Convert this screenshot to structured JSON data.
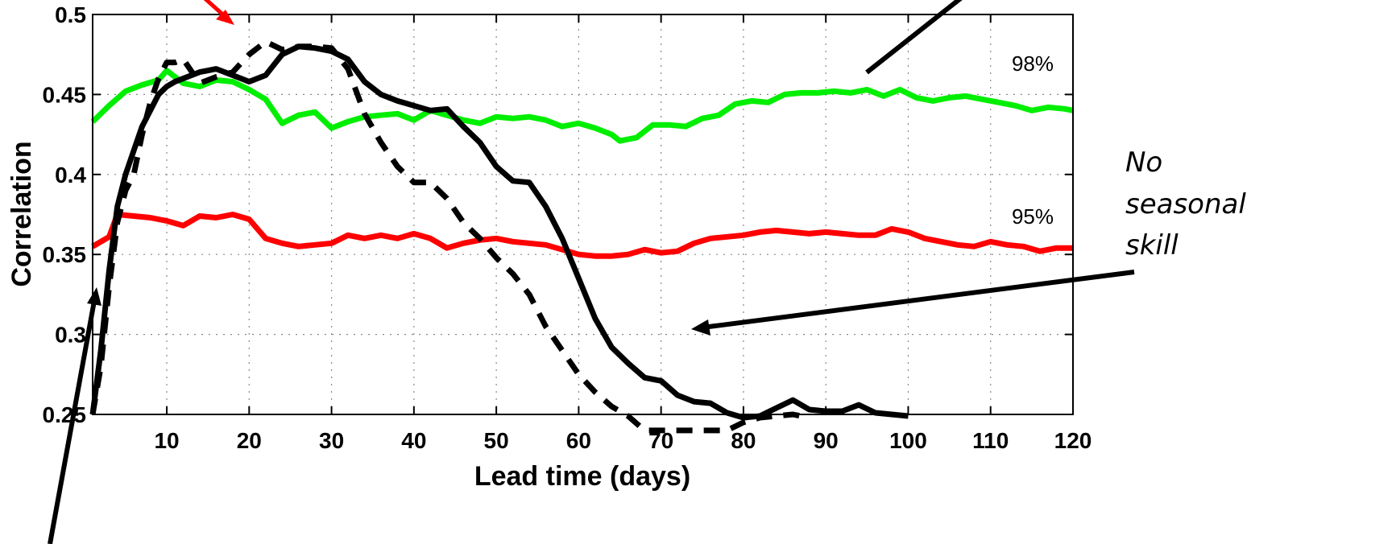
{
  "chart_data": {
    "type": "line",
    "title": "",
    "xlabel": "Lead time (days)",
    "ylabel": "Correlation",
    "xlim": [
      1,
      120
    ],
    "ylim": [
      0.25,
      0.5
    ],
    "xticks": [
      10,
      20,
      30,
      40,
      50,
      60,
      70,
      80,
      90,
      100,
      110,
      120
    ],
    "yticks": [
      0.25,
      0.3,
      0.35,
      0.4,
      0.45,
      0.5
    ],
    "ytick_labels": [
      "0.25",
      "0.3",
      "0.35",
      "0.4",
      "0.45",
      "0.5"
    ],
    "grid": true,
    "series": [
      {
        "name": "",
        "color": "#00ee00",
        "style": "solid",
        "x": [
          1,
          3,
          5,
          7,
          9,
          10,
          12,
          14,
          16,
          18,
          20,
          22,
          24,
          26,
          28,
          30,
          32,
          34,
          36,
          38,
          40,
          42,
          44,
          46,
          48,
          50,
          52,
          54,
          56,
          58,
          60,
          62,
          64,
          65,
          67,
          69,
          71,
          73,
          75,
          77,
          79,
          81,
          83,
          85,
          87,
          89,
          91,
          93,
          95,
          97,
          99,
          101,
          103,
          105,
          107,
          109,
          111,
          113,
          115,
          117,
          119,
          120
        ],
        "y": [
          0.433,
          0.443,
          0.452,
          0.456,
          0.459,
          0.465,
          0.457,
          0.455,
          0.459,
          0.458,
          0.453,
          0.447,
          0.432,
          0.437,
          0.439,
          0.429,
          0.433,
          0.436,
          0.437,
          0.438,
          0.434,
          0.44,
          0.437,
          0.434,
          0.432,
          0.436,
          0.435,
          0.436,
          0.434,
          0.43,
          0.432,
          0.429,
          0.425,
          0.421,
          0.423,
          0.431,
          0.431,
          0.43,
          0.435,
          0.437,
          0.444,
          0.446,
          0.445,
          0.45,
          0.451,
          0.451,
          0.452,
          0.451,
          0.453,
          0.449,
          0.453,
          0.448,
          0.446,
          0.448,
          0.449,
          0.447,
          0.445,
          0.443,
          0.44,
          0.442,
          0.441,
          0.44
        ]
      },
      {
        "name": "",
        "color": "#ff0000",
        "style": "solid",
        "x": [
          1,
          3,
          4,
          6,
          8,
          10,
          12,
          14,
          16,
          18,
          20,
          22,
          24,
          26,
          28,
          30,
          32,
          34,
          36,
          38,
          40,
          42,
          44,
          46,
          48,
          50,
          52,
          54,
          56,
          58,
          60,
          62,
          64,
          66,
          68,
          70,
          72,
          74,
          76,
          78,
          80,
          82,
          84,
          86,
          88,
          90,
          92,
          94,
          96,
          98,
          100,
          102,
          104,
          106,
          108,
          110,
          112,
          114,
          116,
          118,
          120
        ],
        "y": [
          0.355,
          0.361,
          0.375,
          0.374,
          0.373,
          0.371,
          0.368,
          0.374,
          0.373,
          0.375,
          0.372,
          0.36,
          0.357,
          0.355,
          0.356,
          0.357,
          0.362,
          0.36,
          0.362,
          0.36,
          0.363,
          0.36,
          0.354,
          0.357,
          0.359,
          0.36,
          0.358,
          0.357,
          0.356,
          0.353,
          0.35,
          0.349,
          0.349,
          0.35,
          0.353,
          0.351,
          0.352,
          0.357,
          0.36,
          0.361,
          0.362,
          0.364,
          0.365,
          0.364,
          0.363,
          0.364,
          0.363,
          0.362,
          0.362,
          0.366,
          0.364,
          0.36,
          0.358,
          0.356,
          0.355,
          0.358,
          0.356,
          0.355,
          0.352,
          0.354,
          0.354
        ]
      },
      {
        "name": "",
        "color": "#000000",
        "style": "solid",
        "x": [
          1,
          2,
          3,
          4,
          5,
          6,
          7,
          8,
          9,
          10,
          11,
          12,
          14,
          16,
          18,
          20,
          22,
          24,
          26,
          28,
          30,
          32,
          34,
          36,
          38,
          40,
          42,
          44,
          46,
          48,
          50,
          52,
          54,
          56,
          58,
          60,
          62,
          64,
          66,
          68,
          70,
          72,
          74,
          76,
          78,
          80,
          82,
          84,
          86,
          88,
          90,
          92,
          94,
          96,
          98,
          100
        ],
        "y": [
          0.25,
          0.29,
          0.34,
          0.38,
          0.4,
          0.415,
          0.43,
          0.44,
          0.45,
          0.455,
          0.458,
          0.46,
          0.464,
          0.466,
          0.462,
          0.458,
          0.462,
          0.475,
          0.48,
          0.479,
          0.477,
          0.472,
          0.458,
          0.45,
          0.446,
          0.443,
          0.44,
          0.441,
          0.43,
          0.42,
          0.405,
          0.396,
          0.395,
          0.38,
          0.36,
          0.335,
          0.31,
          0.292,
          0.282,
          0.273,
          0.271,
          0.262,
          0.258,
          0.257,
          0.251,
          0.248,
          0.249,
          0.254,
          0.259,
          0.253,
          0.252,
          0.252,
          0.256,
          0.251,
          0.25,
          0.249
        ]
      },
      {
        "name": "",
        "color": "#000000",
        "style": "dashed",
        "x": [
          1,
          2,
          3,
          4,
          5,
          6,
          7,
          8,
          9,
          10,
          11,
          12,
          14,
          16,
          18,
          20,
          22,
          24,
          26,
          28,
          30,
          32,
          34,
          36,
          38,
          40,
          42,
          44,
          46,
          48,
          50,
          52,
          54,
          56,
          58,
          60,
          62,
          64,
          66,
          68,
          70,
          72,
          74,
          76,
          78,
          80,
          82,
          84,
          86,
          88
        ],
        "y": [
          0.25,
          0.28,
          0.33,
          0.37,
          0.39,
          0.4,
          0.425,
          0.445,
          0.46,
          0.47,
          0.47,
          0.472,
          0.457,
          0.461,
          0.464,
          0.475,
          0.483,
          0.478,
          0.48,
          0.48,
          0.479,
          0.466,
          0.438,
          0.42,
          0.405,
          0.395,
          0.395,
          0.385,
          0.37,
          0.36,
          0.348,
          0.338,
          0.325,
          0.305,
          0.29,
          0.275,
          0.264,
          0.255,
          0.249,
          0.24,
          0.24,
          0.24,
          0.24,
          0.24,
          0.24,
          0.245,
          0.248,
          0.249,
          0.25,
          0.248
        ]
      }
    ],
    "annotations": {
      "level_98": "98%",
      "level_95": "95%",
      "no_seasonal_skill_lines": [
        "No",
        "seasonal",
        "skill"
      ]
    },
    "arrow_colors": {
      "red": "#ff0000",
      "black": "#000000"
    }
  }
}
